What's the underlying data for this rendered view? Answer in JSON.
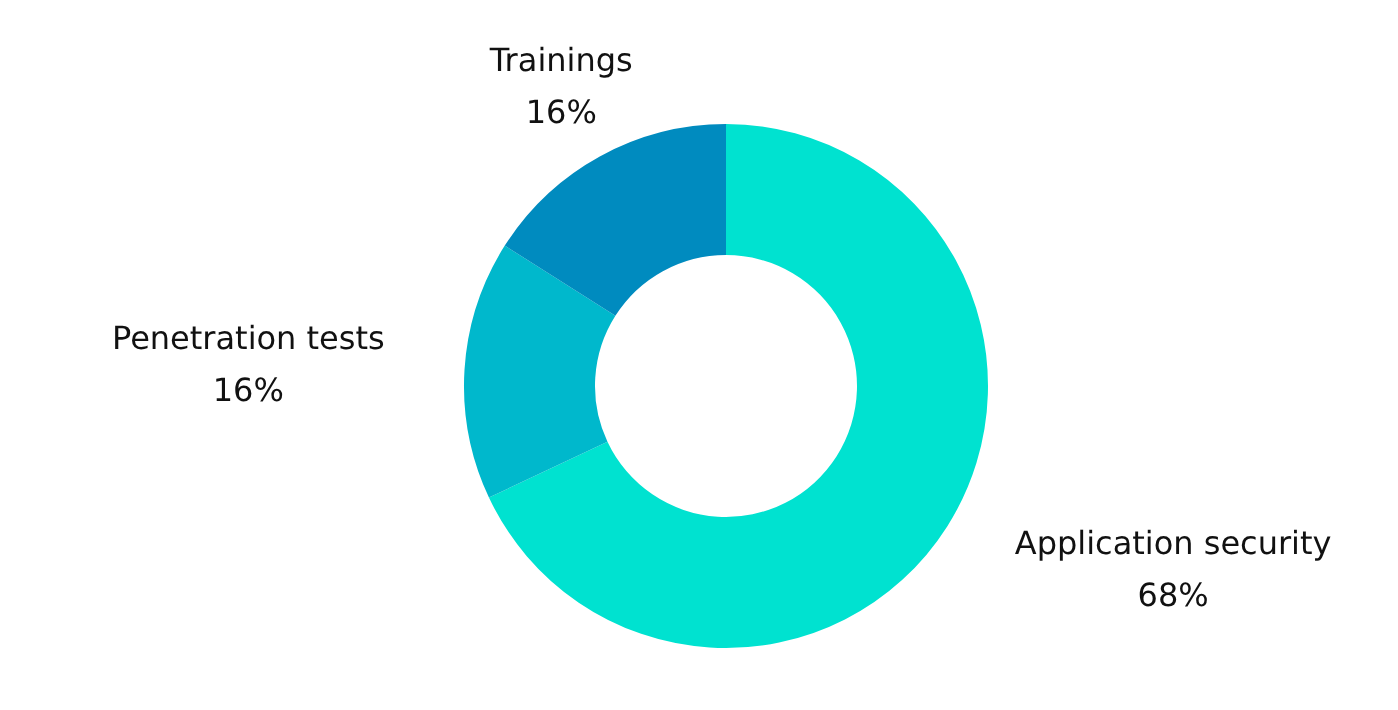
{
  "chart_data": {
    "type": "donut",
    "categories": [
      "Application security",
      "Penetration tests",
      "Trainings"
    ],
    "values": [
      68,
      16,
      16
    ],
    "colors": [
      "#00e2d0",
      "#00b8cc",
      "#008bbf"
    ],
    "value_labels": [
      "68%",
      "16%",
      "16%"
    ],
    "legend": false
  }
}
